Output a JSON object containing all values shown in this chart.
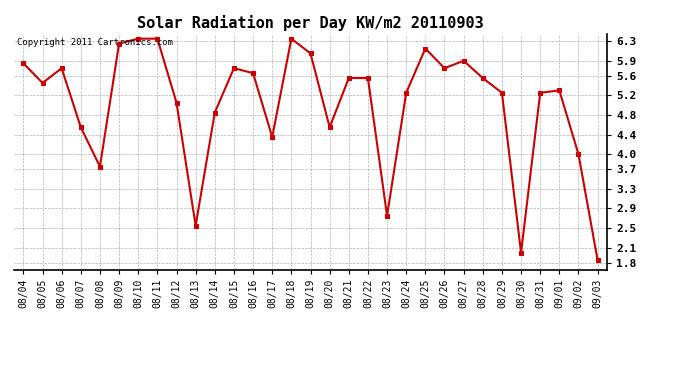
{
  "title": "Solar Radiation per Day KW/m2 20110903",
  "copyright_text": "Copyright 2011 Cartronics.com",
  "dates": [
    "08/04",
    "08/05",
    "08/06",
    "08/07",
    "08/08",
    "08/09",
    "08/10",
    "08/11",
    "08/12",
    "08/13",
    "08/14",
    "08/15",
    "08/16",
    "08/17",
    "08/18",
    "08/19",
    "08/20",
    "08/21",
    "08/22",
    "08/23",
    "08/24",
    "08/25",
    "08/26",
    "08/27",
    "08/28",
    "08/29",
    "08/30",
    "08/31",
    "09/01",
    "09/02",
    "09/03"
  ],
  "values": [
    5.85,
    5.45,
    5.75,
    4.55,
    3.75,
    6.25,
    6.35,
    6.35,
    5.05,
    2.55,
    4.85,
    5.75,
    5.65,
    4.35,
    6.35,
    6.05,
    4.55,
    5.55,
    5.55,
    2.75,
    5.25,
    6.15,
    5.75,
    5.9,
    5.55,
    5.25,
    2.0,
    5.25,
    5.3,
    4.0,
    1.85
  ],
  "ylim": [
    1.65,
    6.45
  ],
  "yticks": [
    1.8,
    2.1,
    2.5,
    2.9,
    3.3,
    3.7,
    4.0,
    4.4,
    4.8,
    5.2,
    5.6,
    5.9,
    6.3
  ],
  "ytick_labels": [
    "1.8",
    "2.1",
    "2.5",
    "2.9",
    "3.3",
    "3.7",
    "4.0",
    "4.4",
    "4.8",
    "5.2",
    "5.6",
    "5.9",
    "6.3"
  ],
  "line_color": "#cc0000",
  "marker_color": "#cc0000",
  "background_color": "#ffffff",
  "grid_color": "#aaaaaa",
  "title_fontsize": 11,
  "tick_fontsize": 7,
  "copyright_fontsize": 6.5
}
